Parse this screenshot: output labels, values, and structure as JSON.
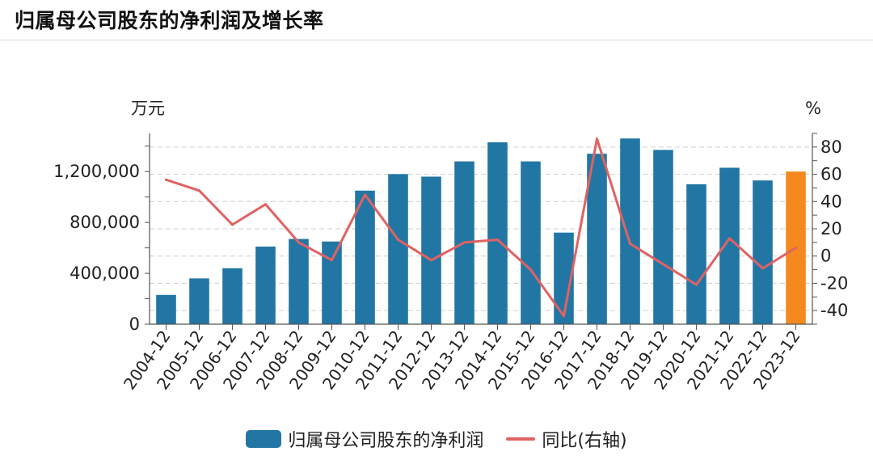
{
  "title": "归属母公司股东的净利润及增长率",
  "chart_data": {
    "type": "bar",
    "categories": [
      "2004-12",
      "2005-12",
      "2006-12",
      "2007-12",
      "2008-12",
      "2009-12",
      "2010-12",
      "2011-12",
      "2012-12",
      "2013-12",
      "2014-12",
      "2015-12",
      "2016-12",
      "2017-12",
      "2018-12",
      "2019-12",
      "2020-12",
      "2021-12",
      "2022-12",
      "2023-12"
    ],
    "series": [
      {
        "name": "归属母公司股东的净利润",
        "type": "bar",
        "axis": "left",
        "color": "#2276a4",
        "highlight_color": "#f5891f",
        "highlight_index": 19,
        "values": [
          230000,
          360000,
          440000,
          610000,
          670000,
          650000,
          1050000,
          1180000,
          1160000,
          1280000,
          1430000,
          1280000,
          720000,
          1340000,
          1460000,
          1370000,
          1100000,
          1230000,
          1130000,
          1200000
        ]
      },
      {
        "name": "同比(右轴)",
        "type": "line",
        "axis": "right",
        "color": "#e06262",
        "values": [
          56,
          48,
          23,
          38,
          10,
          -3,
          45,
          12,
          -3,
          10,
          12,
          -10,
          -44,
          86,
          9,
          -6,
          -21,
          13,
          -9,
          6
        ]
      }
    ],
    "yleft": {
      "unit": "万元",
      "ylim": [
        0,
        1500000
      ],
      "ticks": [
        0,
        400000,
        800000,
        1200000
      ],
      "tick_labels": [
        "0",
        "400,000",
        "800,000",
        "1,200,000"
      ]
    },
    "yright": {
      "unit": "%",
      "ylim": [
        -50,
        90
      ],
      "ticks": [
        -40,
        -20,
        0,
        20,
        40,
        60,
        80
      ],
      "tick_labels": [
        "-40",
        "-20",
        "0",
        "20",
        "40",
        "60",
        "80"
      ]
    },
    "grid": "horizontal-dashed",
    "legend_position": "bottom"
  }
}
